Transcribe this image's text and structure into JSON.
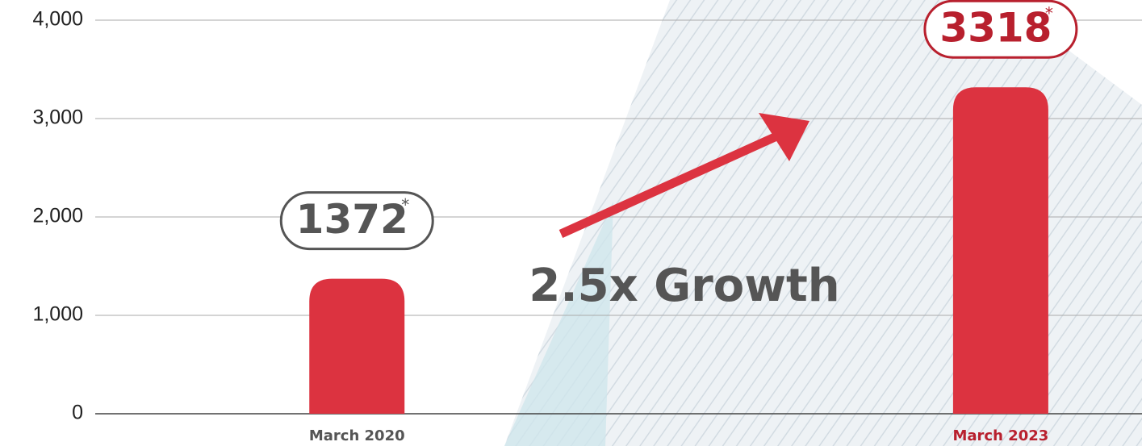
{
  "chart_data": {
    "type": "bar",
    "categories": [
      "March 2020",
      "March 2023"
    ],
    "values": [
      1372,
      3318
    ],
    "color": "#dc3340",
    "category_colors": [
      "#555555",
      "#b8202e"
    ],
    "footnote_marker": "*",
    "annotation": "2.5x Growth",
    "ylim": [
      0,
      4000
    ],
    "yticks": [
      0,
      {
        "value": 1000,
        "label": "1,000"
      },
      {
        "value": 2000,
        "label": "2,000"
      },
      {
        "value": 3000,
        "label": "3,000"
      },
      {
        "value": 4000,
        "label": "4,000"
      }
    ],
    "grid": true
  }
}
